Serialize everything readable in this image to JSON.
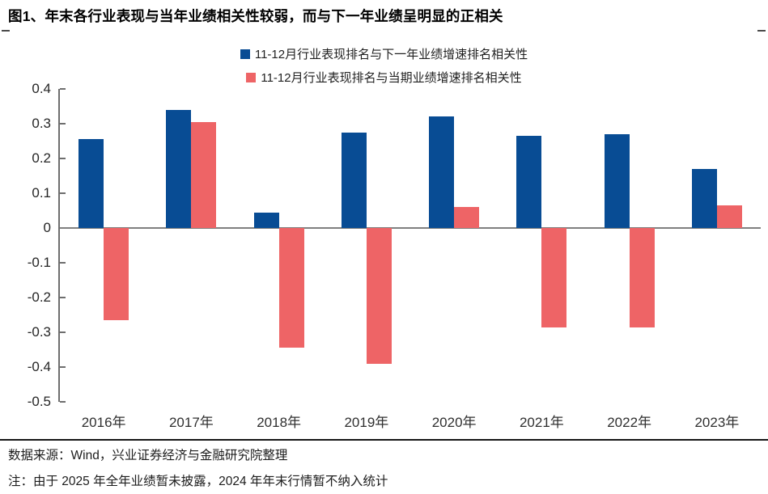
{
  "page": {
    "title": "图1、年末各行业表现与当年业绩相关性较弱，而与下一年业绩呈明显的正相关"
  },
  "footer": {
    "source": "数据来源：Wind，兴业证券经济与金融研究院整理",
    "note": "注：由于 2025 年全年业绩暂未披露，2024 年年末行情暂不纳入统计"
  },
  "colors": {
    "series_next_year": "#084c94",
    "series_current_year": "#ee6466",
    "zero_line": "#7f7f7f",
    "axis": "#6e6e6e"
  },
  "chart_data": {
    "type": "bar",
    "title": "",
    "xlabel": "",
    "ylabel": "",
    "categories": [
      "2016年",
      "2017年",
      "2018年",
      "2019年",
      "2020年",
      "2021年",
      "2022年",
      "2023年"
    ],
    "series": [
      {
        "key": "next-year",
        "name": "11-12月行业表现排名与下一年业绩增速排名相关性",
        "color": "#084c94",
        "values": [
          0.255,
          0.34,
          0.045,
          0.275,
          0.32,
          0.265,
          0.27,
          0.17
        ]
      },
      {
        "key": "current-year",
        "name": "11-12月行业表现排名与当期业绩增速排名相关性",
        "color": "#ee6466",
        "values": [
          -0.265,
          0.305,
          -0.345,
          -0.39,
          0.06,
          -0.285,
          -0.285,
          0.065
        ]
      }
    ],
    "ylim": [
      -0.5,
      0.4
    ],
    "ytick_step": 0.1,
    "grid": false,
    "legend_position": "top-center"
  }
}
